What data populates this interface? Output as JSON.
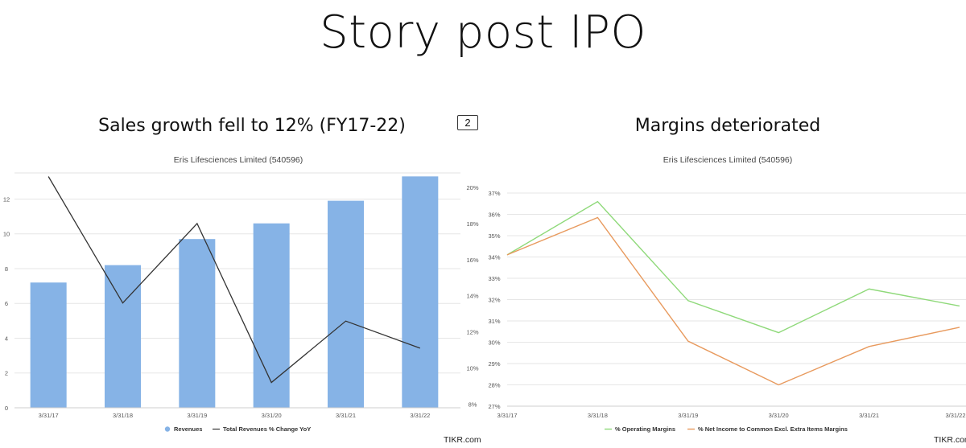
{
  "title": "Story post IPO",
  "page_badge": "2",
  "source_label": "TIKR.com",
  "chart_data": [
    {
      "type": "bar+line",
      "heading": "Sales growth fell to 12% (FY17-22)",
      "subtitle": "Eris Lifesciences Limited (540596)",
      "categories": [
        "3/31/17",
        "3/31/18",
        "3/31/19",
        "3/31/20",
        "3/31/21",
        "3/31/22"
      ],
      "left_axis": {
        "ticks": [
          "0",
          "2",
          "4",
          "6",
          "8",
          "10",
          "12"
        ],
        "range": [
          0,
          13.5
        ]
      },
      "right_axis": {
        "ticks": [
          "8%",
          "10%",
          "12%",
          "14%",
          "16%",
          "18%",
          "20%"
        ],
        "range": [
          7.8,
          20.8
        ]
      },
      "series": [
        {
          "name": "Revenues",
          "kind": "bar",
          "axis": "left",
          "color": "#86b3e6",
          "values": [
            7.2,
            8.2,
            9.7,
            10.6,
            11.9,
            13.3
          ]
        },
        {
          "name": "Total Revenues % Change YoY",
          "kind": "line",
          "axis": "right",
          "color": "#333333",
          "values": [
            20.6,
            13.6,
            18.0,
            9.2,
            12.6,
            11.1
          ]
        }
      ],
      "legend_position": "bottom",
      "grid": "horizontal"
    },
    {
      "type": "line",
      "heading": "Margins deteriorated",
      "subtitle": "Eris Lifesciences Limited (540596)",
      "categories": [
        "3/31/17",
        "3/31/18",
        "3/31/19",
        "3/31/20",
        "3/31/21",
        "3/31/22"
      ],
      "y_axis": {
        "ticks": [
          "27%",
          "28%",
          "29%",
          "30%",
          "31%",
          "32%",
          "33%",
          "34%",
          "35%",
          "36%",
          "37%"
        ],
        "range": [
          27,
          37
        ]
      },
      "series": [
        {
          "name": "% Operating Margins",
          "color": "#8fd97a",
          "values": [
            34.1,
            36.6,
            31.95,
            30.45,
            32.5,
            31.7
          ]
        },
        {
          "name": "% Net Income to Common Excl. Extra Items Margins",
          "color": "#e89a5e",
          "values": [
            34.1,
            35.85,
            30.05,
            28.0,
            29.8,
            30.7
          ]
        }
      ],
      "legend_position": "bottom",
      "grid": "horizontal"
    }
  ]
}
